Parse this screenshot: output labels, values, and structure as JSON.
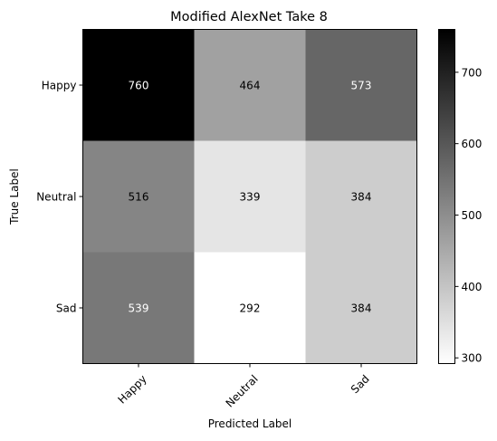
{
  "chart_data": {
    "type": "heatmap",
    "title": "Modified AlexNet Take 8",
    "xlabel": "Predicted Label",
    "ylabel": "True Label",
    "x_categories": [
      "Happy",
      "Neutral",
      "Sad"
    ],
    "y_categories": [
      "Happy",
      "Neutral",
      "Sad"
    ],
    "values": [
      [
        760,
        464,
        573
      ],
      [
        516,
        339,
        384
      ],
      [
        539,
        292,
        384
      ]
    ],
    "colormap": "gray_r",
    "color_range": [
      292,
      760
    ],
    "colorbar_ticks": [
      300,
      400,
      500,
      600,
      700
    ],
    "text_color_light": "#ffffff",
    "text_color_dark": "#000000"
  }
}
